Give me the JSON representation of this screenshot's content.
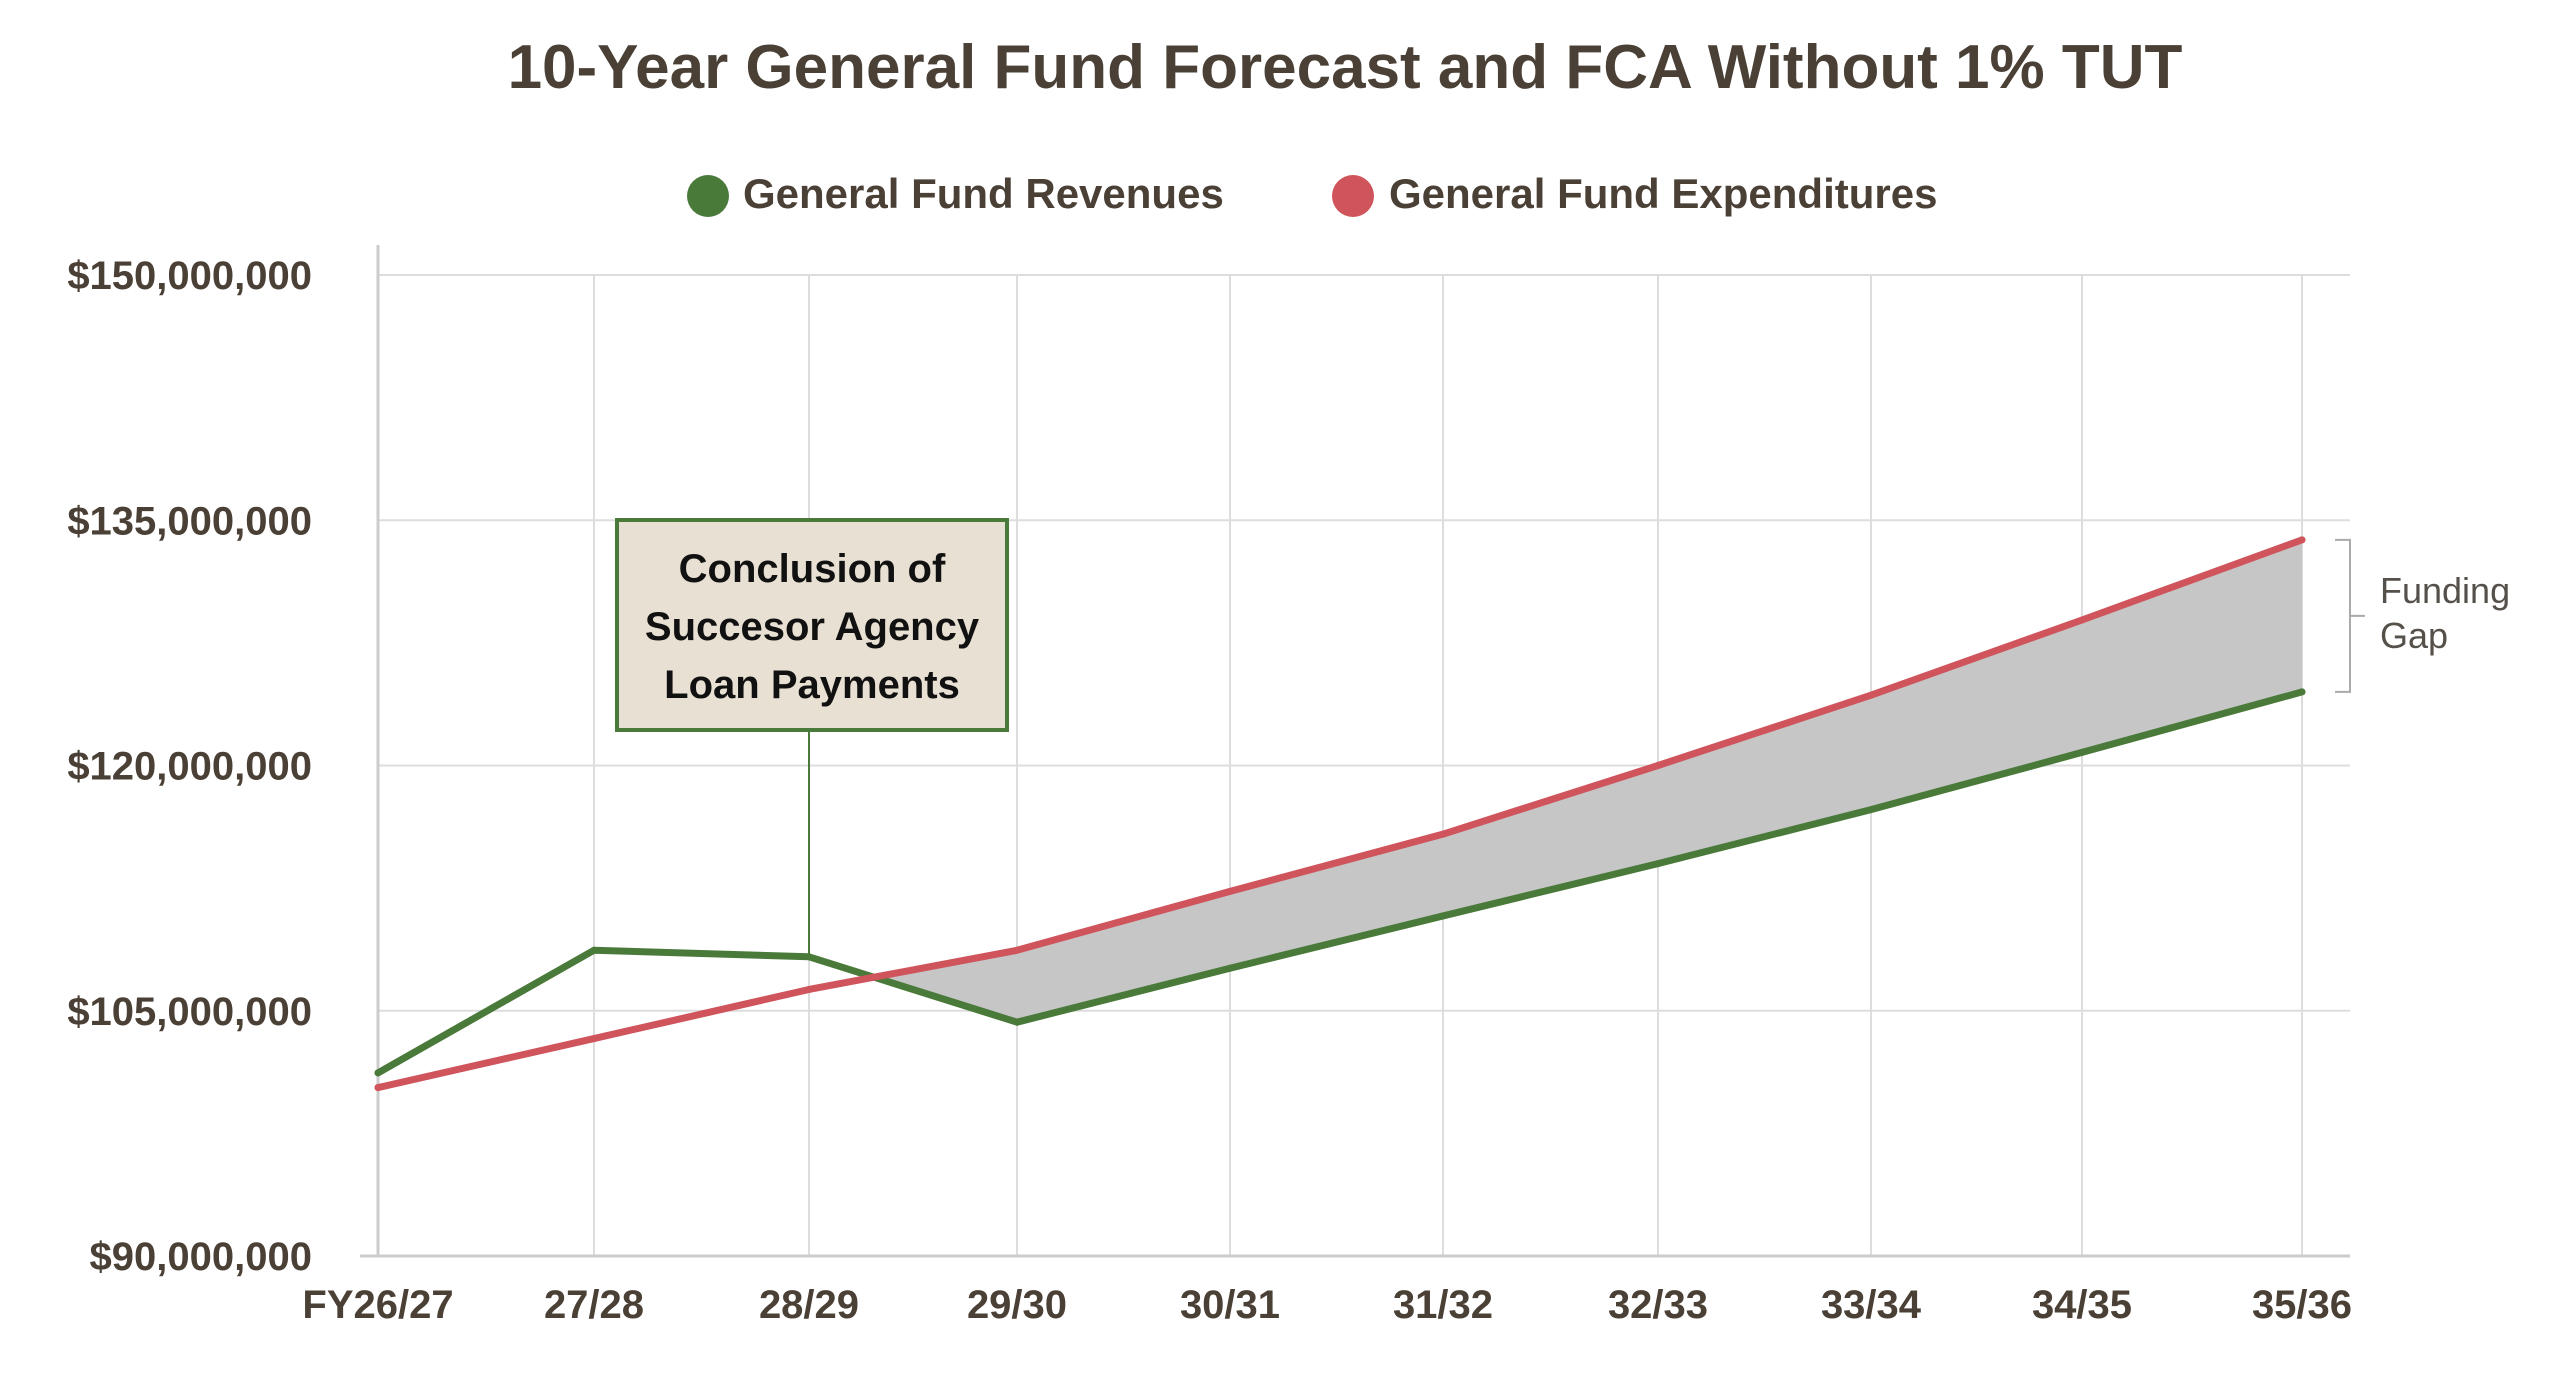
{
  "chart_data": {
    "type": "line",
    "title": "10-Year General Fund Forecast and FCA Without 1% TUT",
    "xlabel": "",
    "ylabel": "",
    "categories": [
      "FY26/27",
      "27/28",
      "28/29",
      "29/30",
      "30/31",
      "31/32",
      "32/33",
      "33/34",
      "34/35",
      "35/36"
    ],
    "ylim": [
      90000000,
      150000000
    ],
    "yticks": [
      90000000,
      105000000,
      120000000,
      135000000,
      150000000
    ],
    "ytick_labels": [
      "$90,000,000",
      "$105,000,000",
      "$120,000,000",
      "$135,000,000",
      "$150,000,000"
    ],
    "grid": true,
    "legend_position": "top-center",
    "series": [
      {
        "name": "General Fund Revenues",
        "color": "#4a7a3a",
        "values": [
          101200000,
          108700000,
          108300000,
          104300000,
          107600000,
          110800000,
          114000000,
          117300000,
          120800000,
          124500000
        ]
      },
      {
        "name": "General Fund Expenditures",
        "color": "#d0545c",
        "values": [
          100300000,
          103300000,
          106300000,
          108700000,
          112300000,
          115800000,
          120000000,
          124300000,
          128900000,
          133800000
        ]
      }
    ],
    "gap_fill_color": "#c6c6c6",
    "annotations": {
      "callout": {
        "lines": [
          "Conclusion of",
          "Succesor Agency",
          "Loan Payments"
        ],
        "anchor_category": "28/29",
        "border_color": "#4a7a3a",
        "background": "#e8e1d3"
      },
      "gap_label": {
        "lines": [
          "Funding",
          "Gap"
        ],
        "anchor_category": "35/36"
      }
    }
  }
}
